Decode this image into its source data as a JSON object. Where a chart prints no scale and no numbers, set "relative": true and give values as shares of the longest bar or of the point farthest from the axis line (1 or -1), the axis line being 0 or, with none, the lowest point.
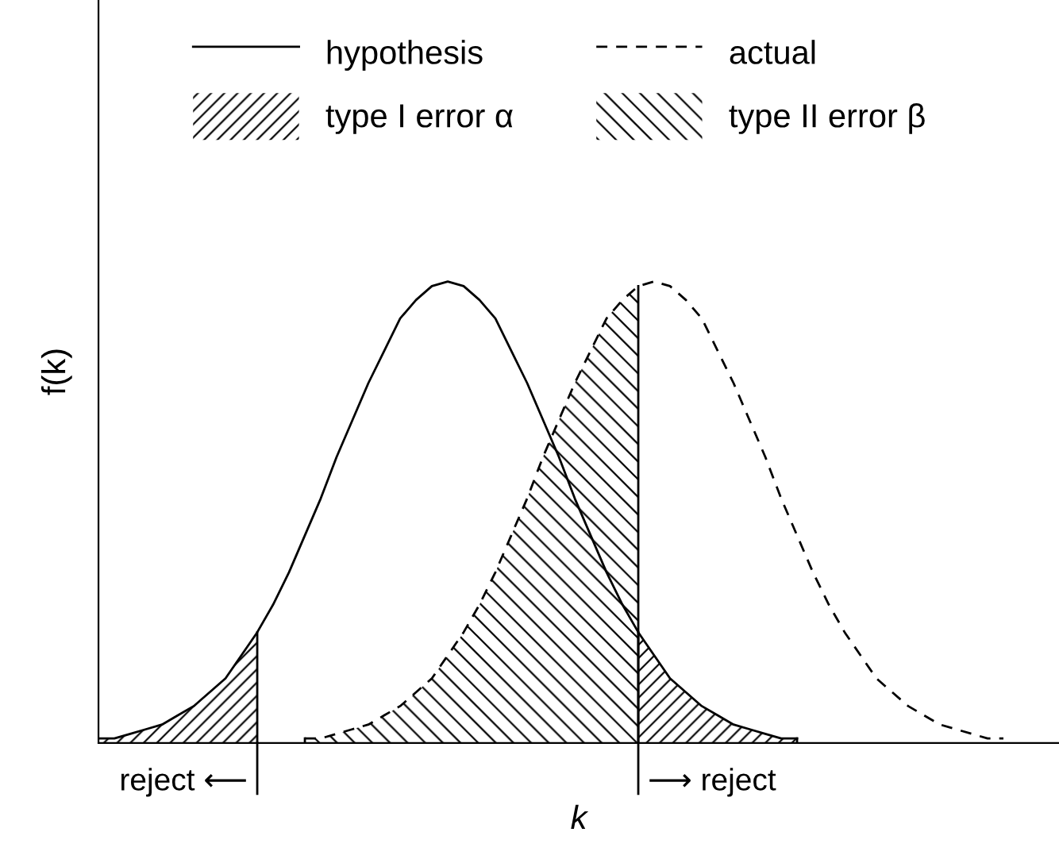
{
  "chart_data": {
    "type": "line",
    "relative": true,
    "xlabel": "k",
    "ylabel": "f(k)",
    "legend": "top",
    "annotations": [
      "reject ⟵",
      "⟶ reject"
    ],
    "categories": [
      null,
      null,
      null,
      null,
      null,
      null,
      null,
      null,
      null,
      null,
      null,
      null,
      null,
      null,
      null,
      null,
      null,
      null,
      null,
      null,
      null,
      null,
      null,
      null,
      null,
      null,
      null,
      null,
      null,
      null,
      null,
      null,
      null,
      null,
      null,
      null,
      null,
      null,
      null,
      null,
      null,
      null,
      null,
      null,
      null,
      null,
      null,
      null,
      null,
      null,
      null,
      null,
      null,
      null,
      null,
      null,
      null,
      null,
      null,
      null,
      null
    ],
    "series": [
      {
        "name": "hypothesis",
        "line_style": "solid",
        "color": "#000000",
        "values": [
          0.01,
          0.01,
          0.02,
          0.03,
          0.04,
          0.06,
          0.08,
          0.11,
          0.14,
          0.19,
          0.24,
          0.3,
          0.37,
          0.45,
          0.53,
          0.62,
          0.7,
          0.78,
          0.85,
          0.92,
          0.96,
          0.99,
          1,
          0.99,
          0.96,
          0.92,
          0.85,
          0.78,
          0.7,
          0.62,
          0.53,
          0.45,
          0.37,
          0.3,
          0.24,
          0.19,
          0.14,
          0.11,
          0.08,
          0.06,
          0.04,
          0.03,
          0.02,
          0.01,
          0.01,
          null,
          null,
          null,
          null,
          null,
          null,
          null,
          null,
          null,
          null,
          null,
          null,
          null,
          null,
          null,
          null
        ]
      },
      {
        "name": "actual",
        "line_style": "dashed",
        "color": "#000000",
        "values": [
          null,
          null,
          null,
          null,
          null,
          null,
          null,
          null,
          null,
          null,
          null,
          null,
          null,
          0.01,
          0.01,
          0.02,
          0.03,
          0.04,
          0.06,
          0.08,
          0.11,
          0.14,
          0.19,
          0.24,
          0.3,
          0.37,
          0.45,
          0.53,
          0.62,
          0.7,
          0.78,
          0.85,
          0.92,
          0.96,
          0.99,
          1,
          0.99,
          0.96,
          0.92,
          0.85,
          0.78,
          0.7,
          0.62,
          0.53,
          0.45,
          0.37,
          0.3,
          0.24,
          0.19,
          0.14,
          0.11,
          0.08,
          0.06,
          0.04,
          0.03,
          0.02,
          0.01,
          0.01,
          null,
          null,
          null
        ]
      },
      {
        "name": "type I error α",
        "type": "area",
        "color": "#000000",
        "values": [
          0.01,
          0.01,
          0.02,
          0.03,
          0.04,
          0.06,
          0.08,
          0.11,
          0.14,
          0.19,
          0.24,
          null,
          null,
          null,
          null,
          null,
          null,
          null,
          null,
          null,
          null,
          null,
          null,
          null,
          null,
          null,
          null,
          null,
          null,
          null,
          null,
          null,
          null,
          null,
          0.24,
          0.19,
          0.14,
          0.11,
          0.08,
          0.06,
          0.04,
          0.03,
          0.02,
          0.01,
          0.01,
          null,
          null,
          null,
          null,
          null,
          null,
          null,
          null,
          null,
          null,
          null,
          null,
          null,
          null,
          null,
          null
        ]
      },
      {
        "name": "type II error β",
        "type": "area",
        "color": "#000000",
        "values": [
          null,
          null,
          null,
          null,
          null,
          null,
          null,
          null,
          null,
          null,
          null,
          null,
          null,
          0.01,
          0.01,
          0.02,
          0.03,
          0.04,
          0.06,
          0.08,
          0.11,
          0.14,
          0.19,
          0.24,
          0.3,
          0.37,
          0.45,
          0.53,
          0.62,
          0.7,
          0.78,
          0.85,
          0.92,
          0.96,
          0.99,
          null,
          null,
          null,
          null,
          null,
          null,
          null,
          null,
          null,
          null,
          null,
          null,
          null,
          null,
          null,
          null,
          null,
          null,
          null,
          null,
          null,
          null,
          null,
          null,
          null,
          null
        ]
      }
    ]
  }
}
